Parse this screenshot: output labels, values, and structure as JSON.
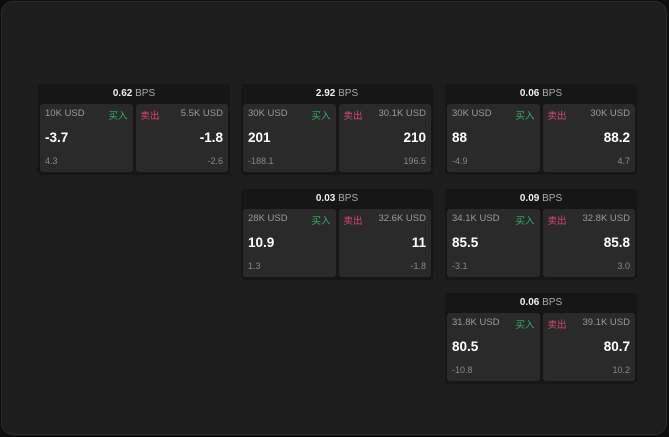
{
  "unit": "BPS",
  "buy_label": "买入",
  "sell_label": "卖出",
  "colors": {
    "buy": "#2fb36b",
    "sell": "#e0446e"
  },
  "cards": [
    {
      "spread": "0.62",
      "bid": {
        "size": "10K USD",
        "price": "-3.7",
        "change": "4.3"
      },
      "ask": {
        "size": "5.5K USD",
        "price": "-1.8",
        "change": "-2.6"
      }
    },
    {
      "spread": "2.92",
      "bid": {
        "size": "30K USD",
        "price": "201",
        "change": "-188.1"
      },
      "ask": {
        "size": "30.1K USD",
        "price": "210",
        "change": "196.5"
      }
    },
    {
      "spread": "0.06",
      "bid": {
        "size": "30K USD",
        "price": "88",
        "change": "-4.9"
      },
      "ask": {
        "size": "30K USD",
        "price": "88.2",
        "change": "4.7"
      }
    },
    {
      "spread": "0.03",
      "bid": {
        "size": "28K USD",
        "price": "10.9",
        "change": "1.3"
      },
      "ask": {
        "size": "32.6K USD",
        "price": "11",
        "change": "-1.8"
      }
    },
    {
      "spread": "0.09",
      "bid": {
        "size": "34.1K USD",
        "price": "85.5",
        "change": "-3.1"
      },
      "ask": {
        "size": "32.8K USD",
        "price": "85.8",
        "change": "3.0"
      }
    },
    {
      "spread": "0.06",
      "bid": {
        "size": "31.8K USD",
        "price": "80.5",
        "change": "-10.8"
      },
      "ask": {
        "size": "39.1K USD",
        "price": "80.7",
        "change": "10.2"
      }
    }
  ]
}
